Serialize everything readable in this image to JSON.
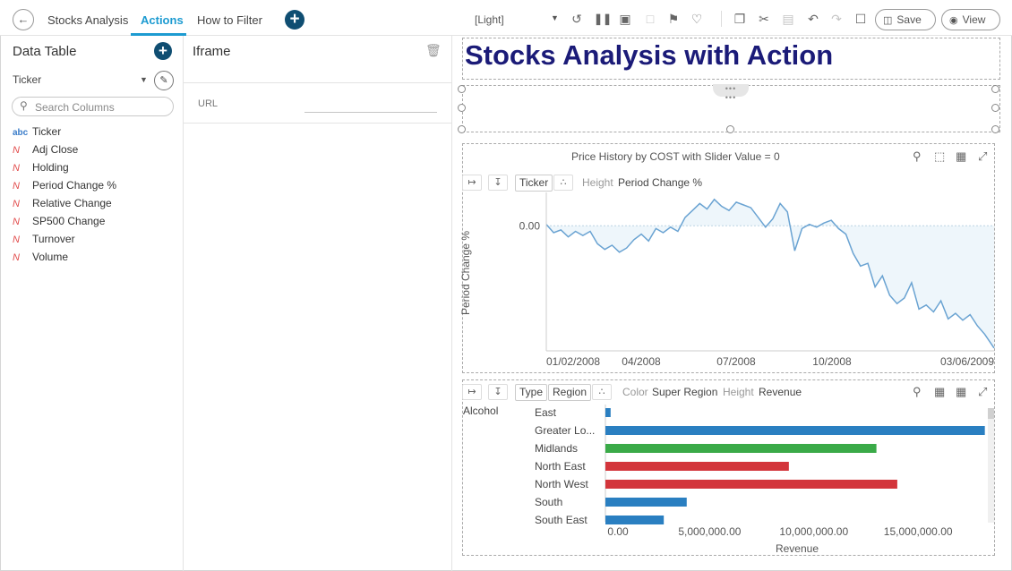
{
  "topbar": {
    "tabs": [
      {
        "label": "Stocks Analysis",
        "active": false
      },
      {
        "label": "Actions",
        "active": true
      },
      {
        "label": "How to Filter",
        "active": false
      }
    ],
    "theme": "[Light]",
    "save_label": "Save",
    "view_label": "View",
    "accent_color": "#1d9bd1",
    "toolbar_icons": [
      "refresh-icon",
      "pause-icon",
      "snapshot-icon",
      "pdf-icon",
      "bookmark-icon",
      "alert-bell-icon",
      "copy-icon",
      "cut-icon",
      "paste-icon",
      "undo-icon",
      "redo-icon",
      "comment-icon",
      "save-icon",
      "eye-icon"
    ]
  },
  "data_table": {
    "title": "Data Table",
    "selected": "Ticker",
    "search_placeholder": "Search Columns",
    "columns": [
      {
        "type": "abc",
        "name": "Ticker"
      },
      {
        "type": "N",
        "name": "Adj Close"
      },
      {
        "type": "N",
        "name": "Holding"
      },
      {
        "type": "N",
        "name": "Period Change %"
      },
      {
        "type": "N",
        "name": "Relative Change"
      },
      {
        "type": "N",
        "name": "SP500 Change"
      },
      {
        "type": "N",
        "name": "Turnover"
      },
      {
        "type": "N",
        "name": "Volume"
      }
    ]
  },
  "iframe_panel": {
    "title": "Iframe",
    "url_label": "URL",
    "url_value": ""
  },
  "canvas": {
    "title": "Stocks Analysis with Action",
    "title_color": "#1b1b78",
    "line_chart": {
      "title": "Price History by COST with Slider Value = 0",
      "tag": "Ticker",
      "height_label": "Height",
      "height_value": "Period Change %",
      "y_label": "Period Change %",
      "zero_label": "0.00",
      "x_ticks": [
        "01/02/2008",
        "04/2008",
        "07/2008",
        "10/2008",
        "03/06/2009"
      ]
    },
    "bar_chart": {
      "tags": [
        "Type",
        "Region"
      ],
      "color_label": "Color",
      "color_value": "Super Region",
      "height_label": "Height",
      "height_value": "Revenue",
      "category_group": "Alcohol",
      "x_label": "Revenue",
      "x_ticks": [
        "0.00",
        "5,000,000.00",
        "10,000,000.00",
        "15,000,000.00"
      ]
    }
  },
  "chart_data": [
    {
      "type": "area",
      "title": "Price History by COST with Slider Value = 0",
      "xlabel": "",
      "ylabel": "Period Change %",
      "x_ticks": [
        "01/02/2008",
        "04/2008",
        "07/2008",
        "10/2008",
        "03/06/2009"
      ],
      "x_start": "2008-01-02",
      "x_end": "2009-03-06",
      "line_color": "#6aa3d2",
      "fill_color": "#eef6fb",
      "series": [
        {
          "x": [
            "2008-01-02",
            "2008-01-09",
            "2008-01-16",
            "2008-01-23",
            "2008-01-30",
            "2008-02-06",
            "2008-02-13",
            "2008-02-20",
            "2008-02-27",
            "2008-03-05",
            "2008-03-12",
            "2008-03-19",
            "2008-03-26",
            "2008-04-02",
            "2008-04-09",
            "2008-04-16",
            "2008-04-23",
            "2008-04-30",
            "2008-05-07",
            "2008-05-14",
            "2008-05-21",
            "2008-05-28",
            "2008-06-04",
            "2008-06-11",
            "2008-06-18",
            "2008-06-25",
            "2008-07-02",
            "2008-07-09",
            "2008-07-16",
            "2008-07-23",
            "2008-07-30",
            "2008-08-06",
            "2008-08-13",
            "2008-08-20",
            "2008-08-27",
            "2008-09-03",
            "2008-09-10",
            "2008-09-17",
            "2008-09-24",
            "2008-10-01",
            "2008-10-08",
            "2008-10-15",
            "2008-10-22",
            "2008-10-29",
            "2008-11-05",
            "2008-11-12",
            "2008-11-19",
            "2008-11-26",
            "2008-12-03",
            "2008-12-10",
            "2008-12-17",
            "2008-12-24",
            "2008-12-31",
            "2009-01-07",
            "2009-01-14",
            "2009-01-21",
            "2009-01-28",
            "2009-02-04",
            "2009-02-11",
            "2009-02-18",
            "2009-02-25",
            "2009-03-06"
          ],
          "y": [
            0.5,
            -2.5,
            -1.5,
            -4.0,
            -2.0,
            -3.5,
            -2.0,
            -6.5,
            -8.5,
            -7.0,
            -9.5,
            -8.0,
            -5.0,
            -3.0,
            -5.5,
            -1.0,
            -2.5,
            -0.5,
            -2.0,
            3.0,
            5.5,
            8.0,
            6.0,
            9.5,
            7.0,
            5.5,
            8.5,
            7.5,
            6.5,
            3.0,
            -0.5,
            2.5,
            8.0,
            5.0,
            -9.0,
            -1.0,
            0.5,
            -0.5,
            1.0,
            2.0,
            -1.0,
            -3.0,
            -10.0,
            -14.5,
            -13.5,
            -22.0,
            -18.0,
            -25.0,
            -28.0,
            -26.0,
            -20.5,
            -30.0,
            -28.5,
            -31.0,
            -27.0,
            -33.5,
            -31.5,
            -34.0,
            -32.0,
            -36.0,
            -39.0,
            -44.0
          ]
        }
      ],
      "zero_line": 0.0,
      "ylim": [
        -45,
        12
      ]
    },
    {
      "type": "bar",
      "orientation": "horizontal",
      "xlabel": "Revenue",
      "ylabel": "",
      "category_group": "Alcohol",
      "categories": [
        "East",
        "Greater London",
        "Midlands",
        "North East",
        "North West",
        "South",
        "South East"
      ],
      "category_labels": [
        "East",
        "Greater Lo...",
        "Midlands",
        "North East",
        "North West",
        "South",
        "South East"
      ],
      "values": [
        250000,
        18200000,
        13000000,
        8800000,
        14000000,
        3900000,
        2800000
      ],
      "colors": [
        "#2a7fc1",
        "#2a7fc1",
        "#3aaa48",
        "#d3353b",
        "#d3353b",
        "#2a7fc1",
        "#2a7fc1"
      ],
      "x_ticks": [
        "0.00",
        "5,000,000.00",
        "10,000,000.00",
        "15,000,000.00"
      ],
      "xlim": [
        0,
        18300000
      ]
    }
  ]
}
